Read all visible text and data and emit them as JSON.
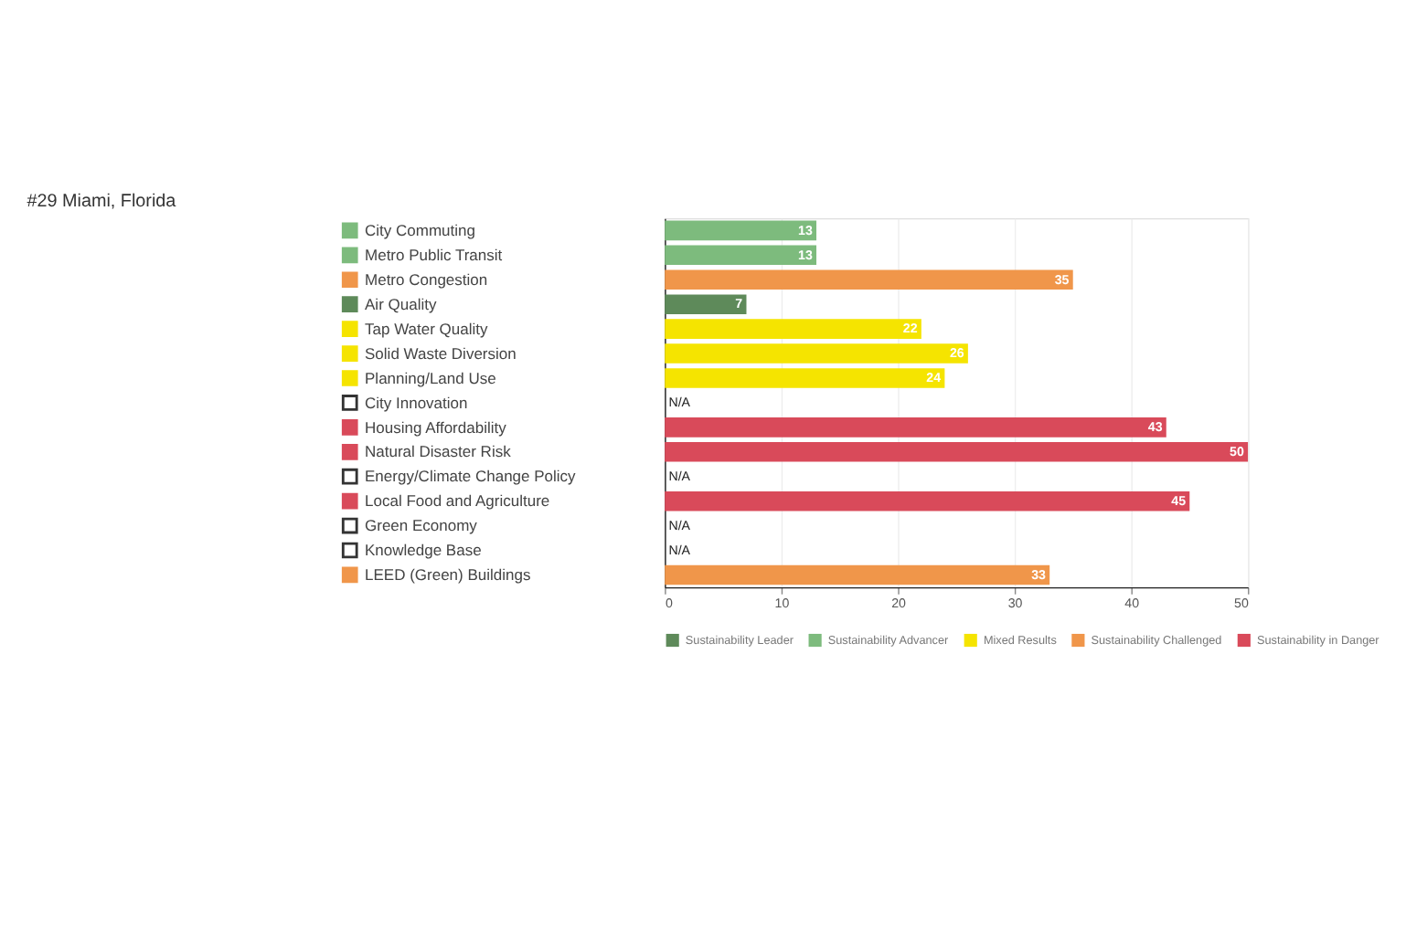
{
  "chart_data": {
    "type": "bar",
    "orientation": "horizontal",
    "title": "#29 Miami, Florida",
    "categories": [
      "City Commuting",
      "Metro Public Transit",
      "Metro Congestion",
      "Air Quality",
      "Tap Water Quality",
      "Solid Waste Diversion",
      "Planning/Land Use",
      "City Innovation",
      "Housing Affordability",
      "Natural Disaster Risk",
      "Energy/Climate Change Policy",
      "Local Food and Agriculture",
      "Green Economy",
      "Knowledge Base",
      "LEED (Green) Buildings"
    ],
    "series": [
      {
        "name": "Sustainability Leader",
        "color": "#5e8a5a",
        "values": [
          null,
          null,
          null,
          7,
          null,
          null,
          null,
          null,
          null,
          null,
          null,
          null,
          null,
          null,
          null
        ]
      },
      {
        "name": "Sustainability Advancer",
        "color": "#7dbb7d",
        "values": [
          13,
          13,
          null,
          null,
          null,
          null,
          null,
          null,
          null,
          null,
          null,
          null,
          null,
          null,
          null
        ]
      },
      {
        "name": "Mixed Results",
        "color": "#f5e400",
        "values": [
          null,
          null,
          null,
          null,
          22,
          26,
          24,
          null,
          null,
          null,
          null,
          null,
          null,
          null,
          null
        ]
      },
      {
        "name": "Sustainability Challenged",
        "color": "#f0964a",
        "values": [
          null,
          null,
          35,
          null,
          null,
          null,
          null,
          null,
          null,
          null,
          null,
          null,
          null,
          null,
          33
        ]
      },
      {
        "name": "Sustainability in Danger",
        "color": "#d94a5a",
        "values": [
          null,
          null,
          null,
          null,
          null,
          null,
          null,
          null,
          43,
          50,
          null,
          45,
          null,
          null,
          null
        ]
      }
    ],
    "data_labels": true,
    "annotations": [
      "N/A",
      "N/A",
      "N/A",
      "N/A"
    ],
    "xlim": [
      0,
      50
    ],
    "xticks": [
      0,
      10,
      20,
      30,
      40,
      50
    ],
    "grid": "x",
    "legend": "bottom"
  }
}
